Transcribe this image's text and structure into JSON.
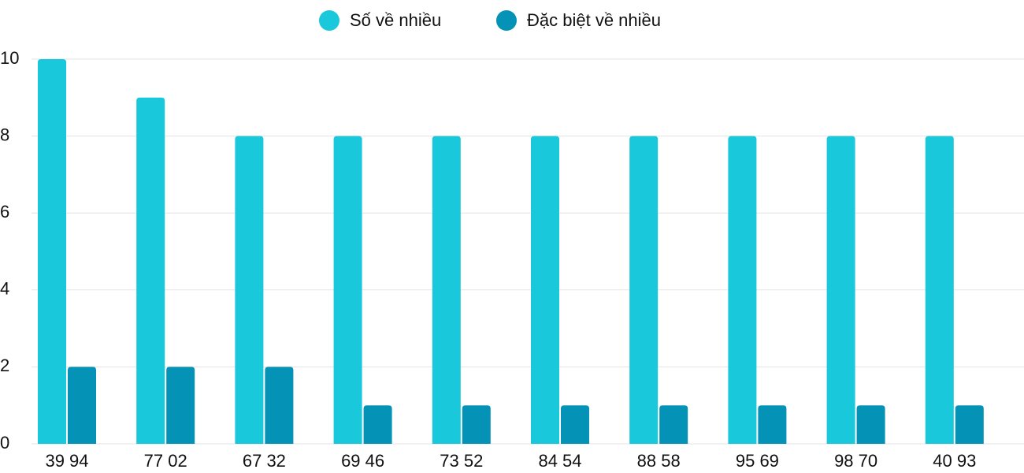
{
  "chart_data": {
    "type": "bar",
    "categories": [
      "39 94",
      "77 02",
      "67 32",
      "69 46",
      "73 52",
      "84 54",
      "88 58",
      "95 69",
      "98 70",
      "40 93"
    ],
    "series": [
      {
        "name": "Số về nhiều",
        "color": "#1ac8db",
        "values": [
          10,
          9,
          8,
          8,
          8,
          8,
          8,
          8,
          8,
          8
        ]
      },
      {
        "name": "Đặc biệt về nhiều",
        "color": "#0492b6",
        "values": [
          2,
          2,
          2,
          1,
          1,
          1,
          1,
          1,
          1,
          1
        ]
      }
    ],
    "ylim": [
      0,
      10
    ],
    "yticks": [
      0,
      2,
      4,
      6,
      8,
      10
    ],
    "grid": true,
    "legend": "top"
  }
}
